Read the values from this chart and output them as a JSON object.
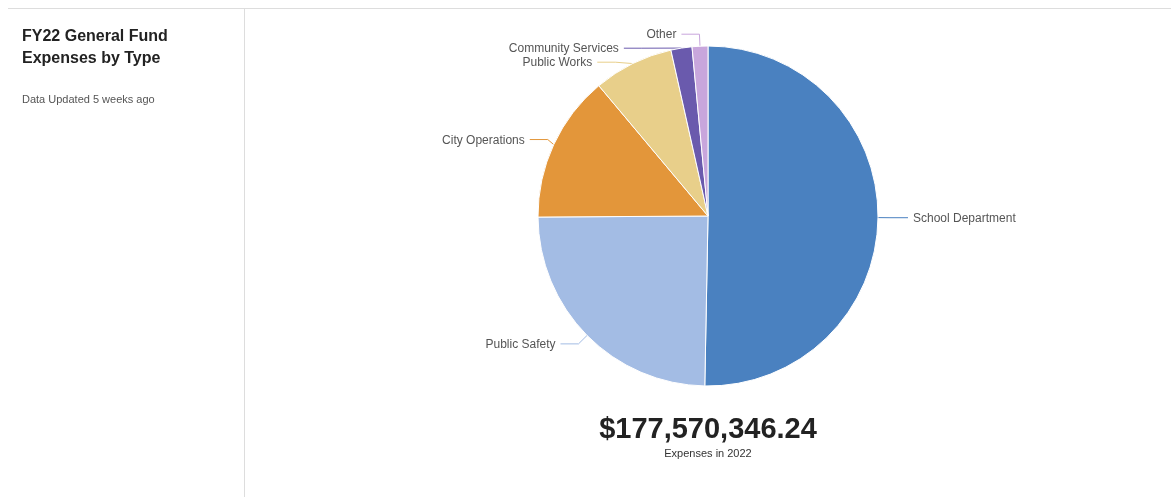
{
  "chart_data": {
    "type": "pie",
    "title": "FY22 General Fund Expenses by Type",
    "subtitle": "Data Updated 5 weeks ago",
    "categories": [
      "School Department",
      "Public Safety",
      "City Operations",
      "Public Works",
      "Community Services",
      "Other"
    ],
    "values": [
      50.3,
      24.6,
      14.0,
      7.6,
      2.0,
      1.5
    ],
    "colors": [
      "#4a81c0",
      "#a3bce4",
      "#e3963a",
      "#e8cf8a",
      "#6a5aad",
      "#c8a6dc"
    ],
    "annotations": [
      "$177,570,346.24",
      "Expenses in 2022"
    ],
    "legend": false
  }
}
